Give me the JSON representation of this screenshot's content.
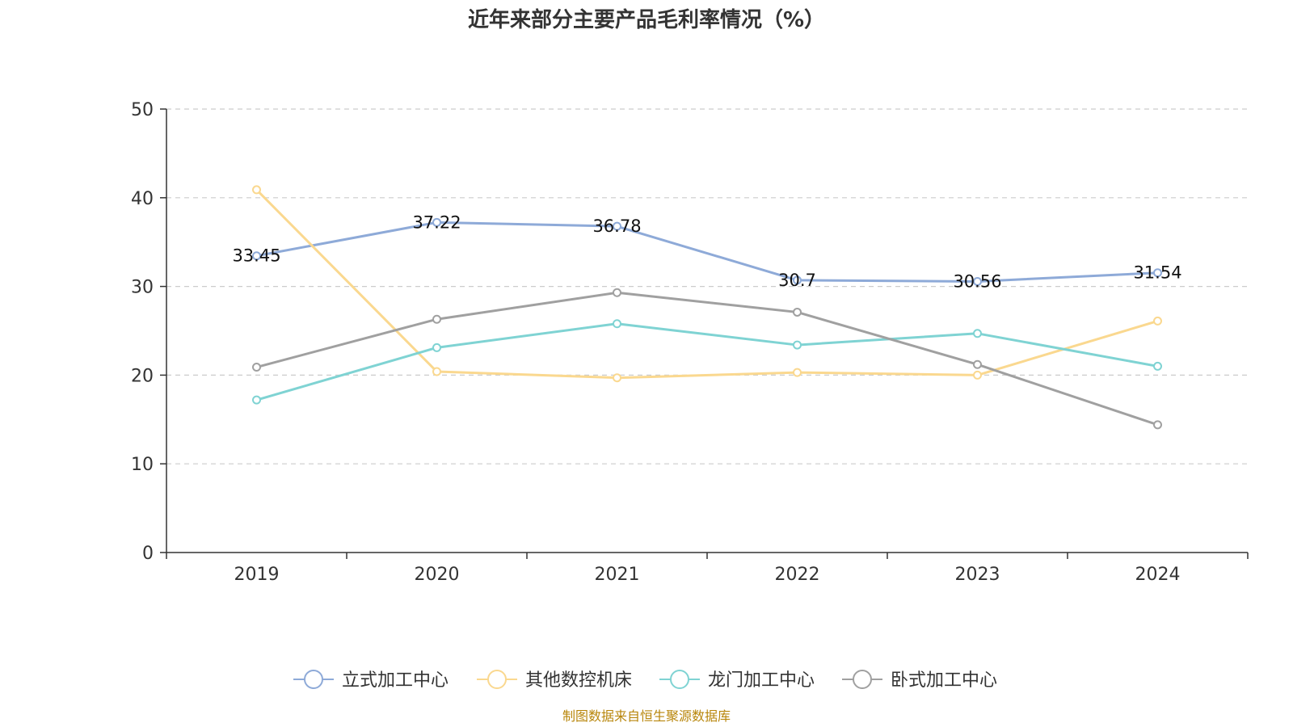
{
  "chart_data": {
    "type": "line",
    "title": "近年来部分主要产品毛利率情况（%）",
    "xlabel": "",
    "ylabel": "",
    "categories": [
      "2019",
      "2020",
      "2021",
      "2022",
      "2023",
      "2024"
    ],
    "ylim": [
      0,
      50
    ],
    "yticks": [
      0,
      10,
      20,
      30,
      40,
      50
    ],
    "grid": true,
    "legend_position": "bottom",
    "series": [
      {
        "name": "立式加工中心",
        "color": "#8eaad8",
        "values": [
          33.45,
          37.22,
          36.78,
          30.7,
          30.56,
          31.54
        ],
        "labels": [
          "33.45",
          "37.22",
          "36.78",
          "30.7",
          "30.56",
          "31.54"
        ]
      },
      {
        "name": "其他数控机床",
        "color": "#fad88f",
        "values": [
          40.9,
          20.4,
          19.7,
          20.3,
          20.0,
          26.1
        ]
      },
      {
        "name": "龙门加工中心",
        "color": "#7fd3d3",
        "values": [
          17.2,
          23.1,
          25.8,
          23.4,
          24.7,
          21.0
        ]
      },
      {
        "name": "卧式加工中心",
        "color": "#a0a0a0",
        "values": [
          20.9,
          26.3,
          29.3,
          27.1,
          21.2,
          14.4
        ]
      }
    ],
    "source": "制图数据来自恒生聚源数据库"
  }
}
